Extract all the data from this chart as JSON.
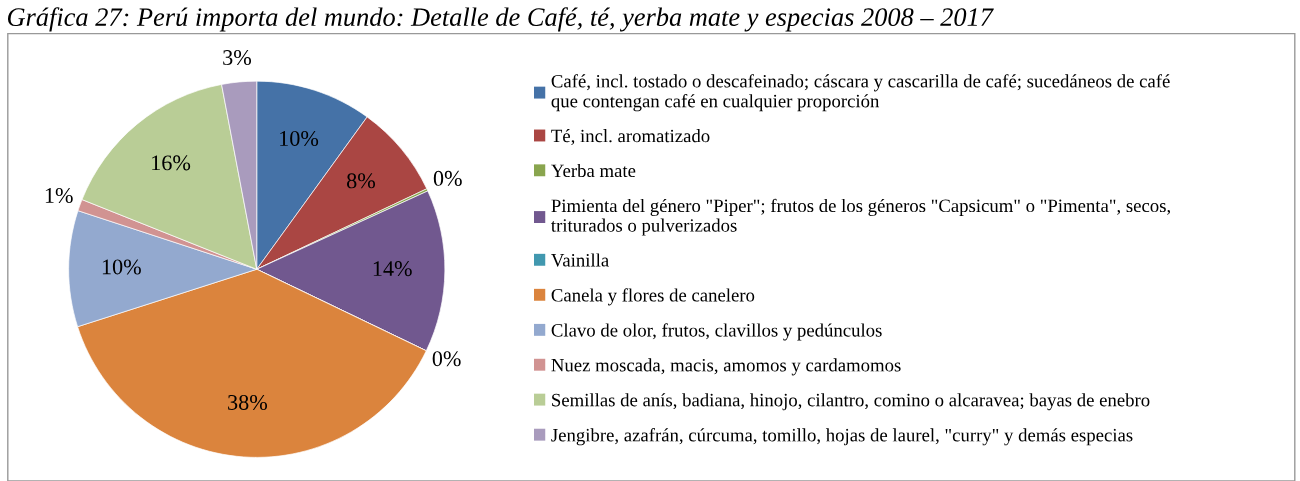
{
  "chart_data": {
    "type": "pie",
    "title": "Gráfica 27: Perú importa del mundo: Detalle de Café, té, yerba mate y especias 2008 – 2017",
    "categories": [
      "Café, incl. tostado o descafeinado; cáscara y cascarilla de café; sucedáneos de café que contengan café en cualquier proporción",
      "Té, incl. aromatizado",
      "Yerba mate",
      "Pimienta del género \"Piper\"; frutos de los géneros \"Capsicum\" o \"Pimenta\", secos, triturados o pulverizados",
      "Vainilla",
      "Canela y flores de canelero",
      "Clavo de olor, frutos, clavillos y pedúnculos",
      "Nuez moscada, macis, amomos y cardamomos",
      "Semillas de anís, badiana, hinojo, cilantro, comino o alcaravea; bayas de enebro",
      "Jengibre, azafrán, cúrcuma, tomillo, hojas de laurel, \"curry\" y demás especias"
    ],
    "values": [
      10,
      8,
      0.2,
      14,
      0,
      38,
      10,
      1,
      16,
      3
    ],
    "value_labels": [
      "10%",
      "8%",
      "0%",
      "14%",
      "0%",
      "38%",
      "10%",
      "1%",
      "16%",
      "3%"
    ],
    "colors": [
      "#4572a7",
      "#aa4643",
      "#89a54e",
      "#71588f",
      "#4198af",
      "#db843d",
      "#93a9cf",
      "#d19392",
      "#b9cd96",
      "#a99bbd"
    ],
    "legend": "right"
  }
}
